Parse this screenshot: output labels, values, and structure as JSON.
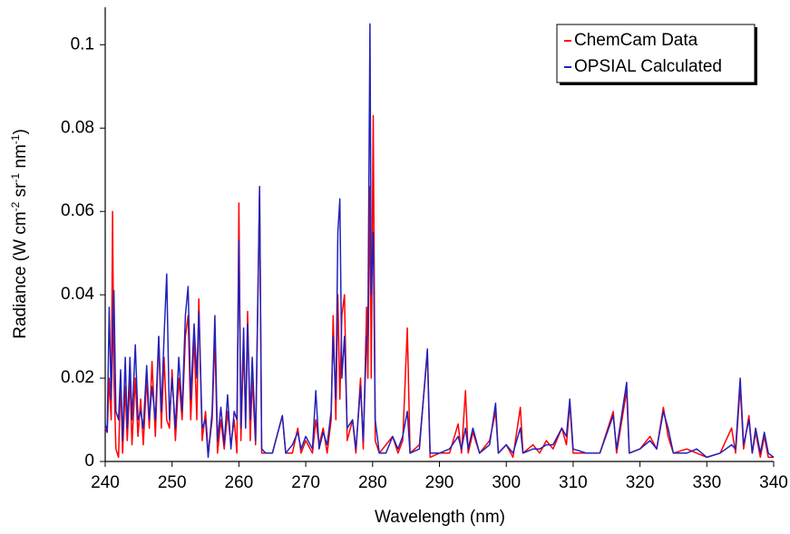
{
  "chart_data": {
    "type": "line",
    "x_label": "Wavelength (nm)",
    "y_label_parts": [
      "Radiance (W cm",
      "-2",
      " sr",
      "-1",
      " nm",
      "-1",
      ")"
    ],
    "x": [
      240,
      240.3,
      240.6,
      240.9,
      241.1,
      241.3,
      241.6,
      242,
      242.3,
      242.6,
      243,
      243.3,
      243.7,
      244,
      244.5,
      244.9,
      245.3,
      245.7,
      246.2,
      246.6,
      247,
      247.5,
      248,
      248.4,
      248.8,
      249.2,
      249.6,
      250,
      250.5,
      251,
      251.5,
      252,
      252.4,
      252.8,
      253.3,
      253.7,
      254,
      254.5,
      255,
      255.4,
      256,
      256.4,
      256.8,
      257.3,
      257.8,
      258.3,
      258.8,
      259.3,
      259.7,
      260,
      260.3,
      260.7,
      261,
      261.3,
      261.7,
      262,
      262.5,
      263.1,
      263.4,
      264,
      265,
      266.5,
      267,
      268,
      268.8,
      269.3,
      270,
      271,
      271.5,
      272,
      272.6,
      273.2,
      273.8,
      274.1,
      274.5,
      274.8,
      275.1,
      275.4,
      275.8,
      276.2,
      277,
      277.5,
      278.2,
      278.6,
      279.1,
      279.3,
      279.6,
      279.8,
      280.1,
      280.4,
      281,
      282,
      283,
      283.8,
      284.5,
      285.2,
      285.6,
      287,
      288.2,
      288.6,
      290,
      291.5,
      292.8,
      293.3,
      293.9,
      294.3,
      295,
      296,
      297.5,
      298.4,
      298.8,
      300,
      301,
      302.1,
      302.5,
      304,
      305,
      306,
      307,
      308.3,
      309,
      309.5,
      310,
      312,
      314,
      316,
      316.5,
      318,
      318.4,
      320,
      321.5,
      322.5,
      323.5,
      324.2,
      325,
      327,
      328.5,
      330,
      332,
      333.7,
      334.3,
      335,
      335.5,
      336.3,
      336.8,
      337.3,
      338,
      338.6,
      339.2,
      340
    ],
    "series": [
      {
        "name": "ChemCam Data",
        "color": "#ff0000",
        "values": [
          0.008,
          0.007,
          0.02,
          0.01,
          0.06,
          0.02,
          0.003,
          0.001,
          0.02,
          0.002,
          0.018,
          0.005,
          0.02,
          0.004,
          0.02,
          0.006,
          0.015,
          0.004,
          0.02,
          0.008,
          0.024,
          0.006,
          0.03,
          0.008,
          0.025,
          0.01,
          0.008,
          0.022,
          0.005,
          0.02,
          0.01,
          0.03,
          0.035,
          0.01,
          0.03,
          0.01,
          0.039,
          0.005,
          0.012,
          0.002,
          0.01,
          0.03,
          0.002,
          0.01,
          0.003,
          0.012,
          0.004,
          0.01,
          0.002,
          0.062,
          0.005,
          0.028,
          0.01,
          0.036,
          0.005,
          0.02,
          0.004,
          0.065,
          0.002,
          0.002,
          0.002,
          0.011,
          0.002,
          0.002,
          0.008,
          0.002,
          0.005,
          0.002,
          0.01,
          0.004,
          0.008,
          0.002,
          0.01,
          0.035,
          0.01,
          0.04,
          0.015,
          0.035,
          0.04,
          0.005,
          0.01,
          0.002,
          0.02,
          0.003,
          0.037,
          0.02,
          0.066,
          0.02,
          0.083,
          0.005,
          0.002,
          0.004,
          0.006,
          0.002,
          0.005,
          0.032,
          0.002,
          0.004,
          0.026,
          0.001,
          0.002,
          0.002,
          0.009,
          0.002,
          0.017,
          0.002,
          0.007,
          0.002,
          0.005,
          0.012,
          0.002,
          0.004,
          0.001,
          0.013,
          0.002,
          0.004,
          0.002,
          0.005,
          0.003,
          0.008,
          0.004,
          0.014,
          0.002,
          0.002,
          0.002,
          0.012,
          0.002,
          0.017,
          0.002,
          0.003,
          0.006,
          0.003,
          0.013,
          0.006,
          0.002,
          0.003,
          0.002,
          0.001,
          0.002,
          0.008,
          0.002,
          0.018,
          0.003,
          0.011,
          0.002,
          0.007,
          0.001,
          0.006,
          0.001,
          0.001
        ]
      },
      {
        "name": "OPSIAL Calculated",
        "color": "#2222bb",
        "values": [
          0.009,
          0.007,
          0.037,
          0.015,
          0.03,
          0.041,
          0.012,
          0.01,
          0.022,
          0.005,
          0.025,
          0.008,
          0.025,
          0.01,
          0.028,
          0.01,
          0.012,
          0.008,
          0.023,
          0.01,
          0.018,
          0.01,
          0.03,
          0.012,
          0.03,
          0.045,
          0.01,
          0.02,
          0.008,
          0.025,
          0.012,
          0.035,
          0.042,
          0.015,
          0.033,
          0.02,
          0.036,
          0.008,
          0.01,
          0.001,
          0.012,
          0.035,
          0.005,
          0.013,
          0.004,
          0.016,
          0.003,
          0.012,
          0.01,
          0.053,
          0.008,
          0.032,
          0.008,
          0.033,
          0.01,
          0.025,
          0.005,
          0.066,
          0.003,
          0.002,
          0.002,
          0.011,
          0.002,
          0.004,
          0.007,
          0.003,
          0.006,
          0.003,
          0.017,
          0.003,
          0.007,
          0.004,
          0.012,
          0.03,
          0.015,
          0.055,
          0.063,
          0.02,
          0.03,
          0.008,
          0.01,
          0.003,
          0.018,
          0.005,
          0.03,
          0.03,
          0.105,
          0.04,
          0.055,
          0.01,
          0.002,
          0.002,
          0.006,
          0.003,
          0.006,
          0.012,
          0.002,
          0.003,
          0.027,
          0.002,
          0.002,
          0.003,
          0.006,
          0.003,
          0.008,
          0.003,
          0.008,
          0.002,
          0.004,
          0.014,
          0.002,
          0.004,
          0.002,
          0.008,
          0.002,
          0.003,
          0.003,
          0.004,
          0.004,
          0.008,
          0.006,
          0.015,
          0.003,
          0.002,
          0.002,
          0.011,
          0.003,
          0.019,
          0.002,
          0.003,
          0.005,
          0.003,
          0.012,
          0.008,
          0.002,
          0.002,
          0.003,
          0.001,
          0.002,
          0.004,
          0.003,
          0.02,
          0.004,
          0.01,
          0.002,
          0.008,
          0.002,
          0.007,
          0.002,
          0.001
        ]
      }
    ],
    "xlim": [
      240,
      340
    ],
    "xticks": [
      240,
      250,
      260,
      270,
      280,
      290,
      300,
      310,
      320,
      330,
      340
    ],
    "ylim": [
      0,
      0.109
    ],
    "yticks": [
      0,
      0.02,
      0.04,
      0.06,
      0.08,
      0.1
    ],
    "legend": "top-right"
  }
}
